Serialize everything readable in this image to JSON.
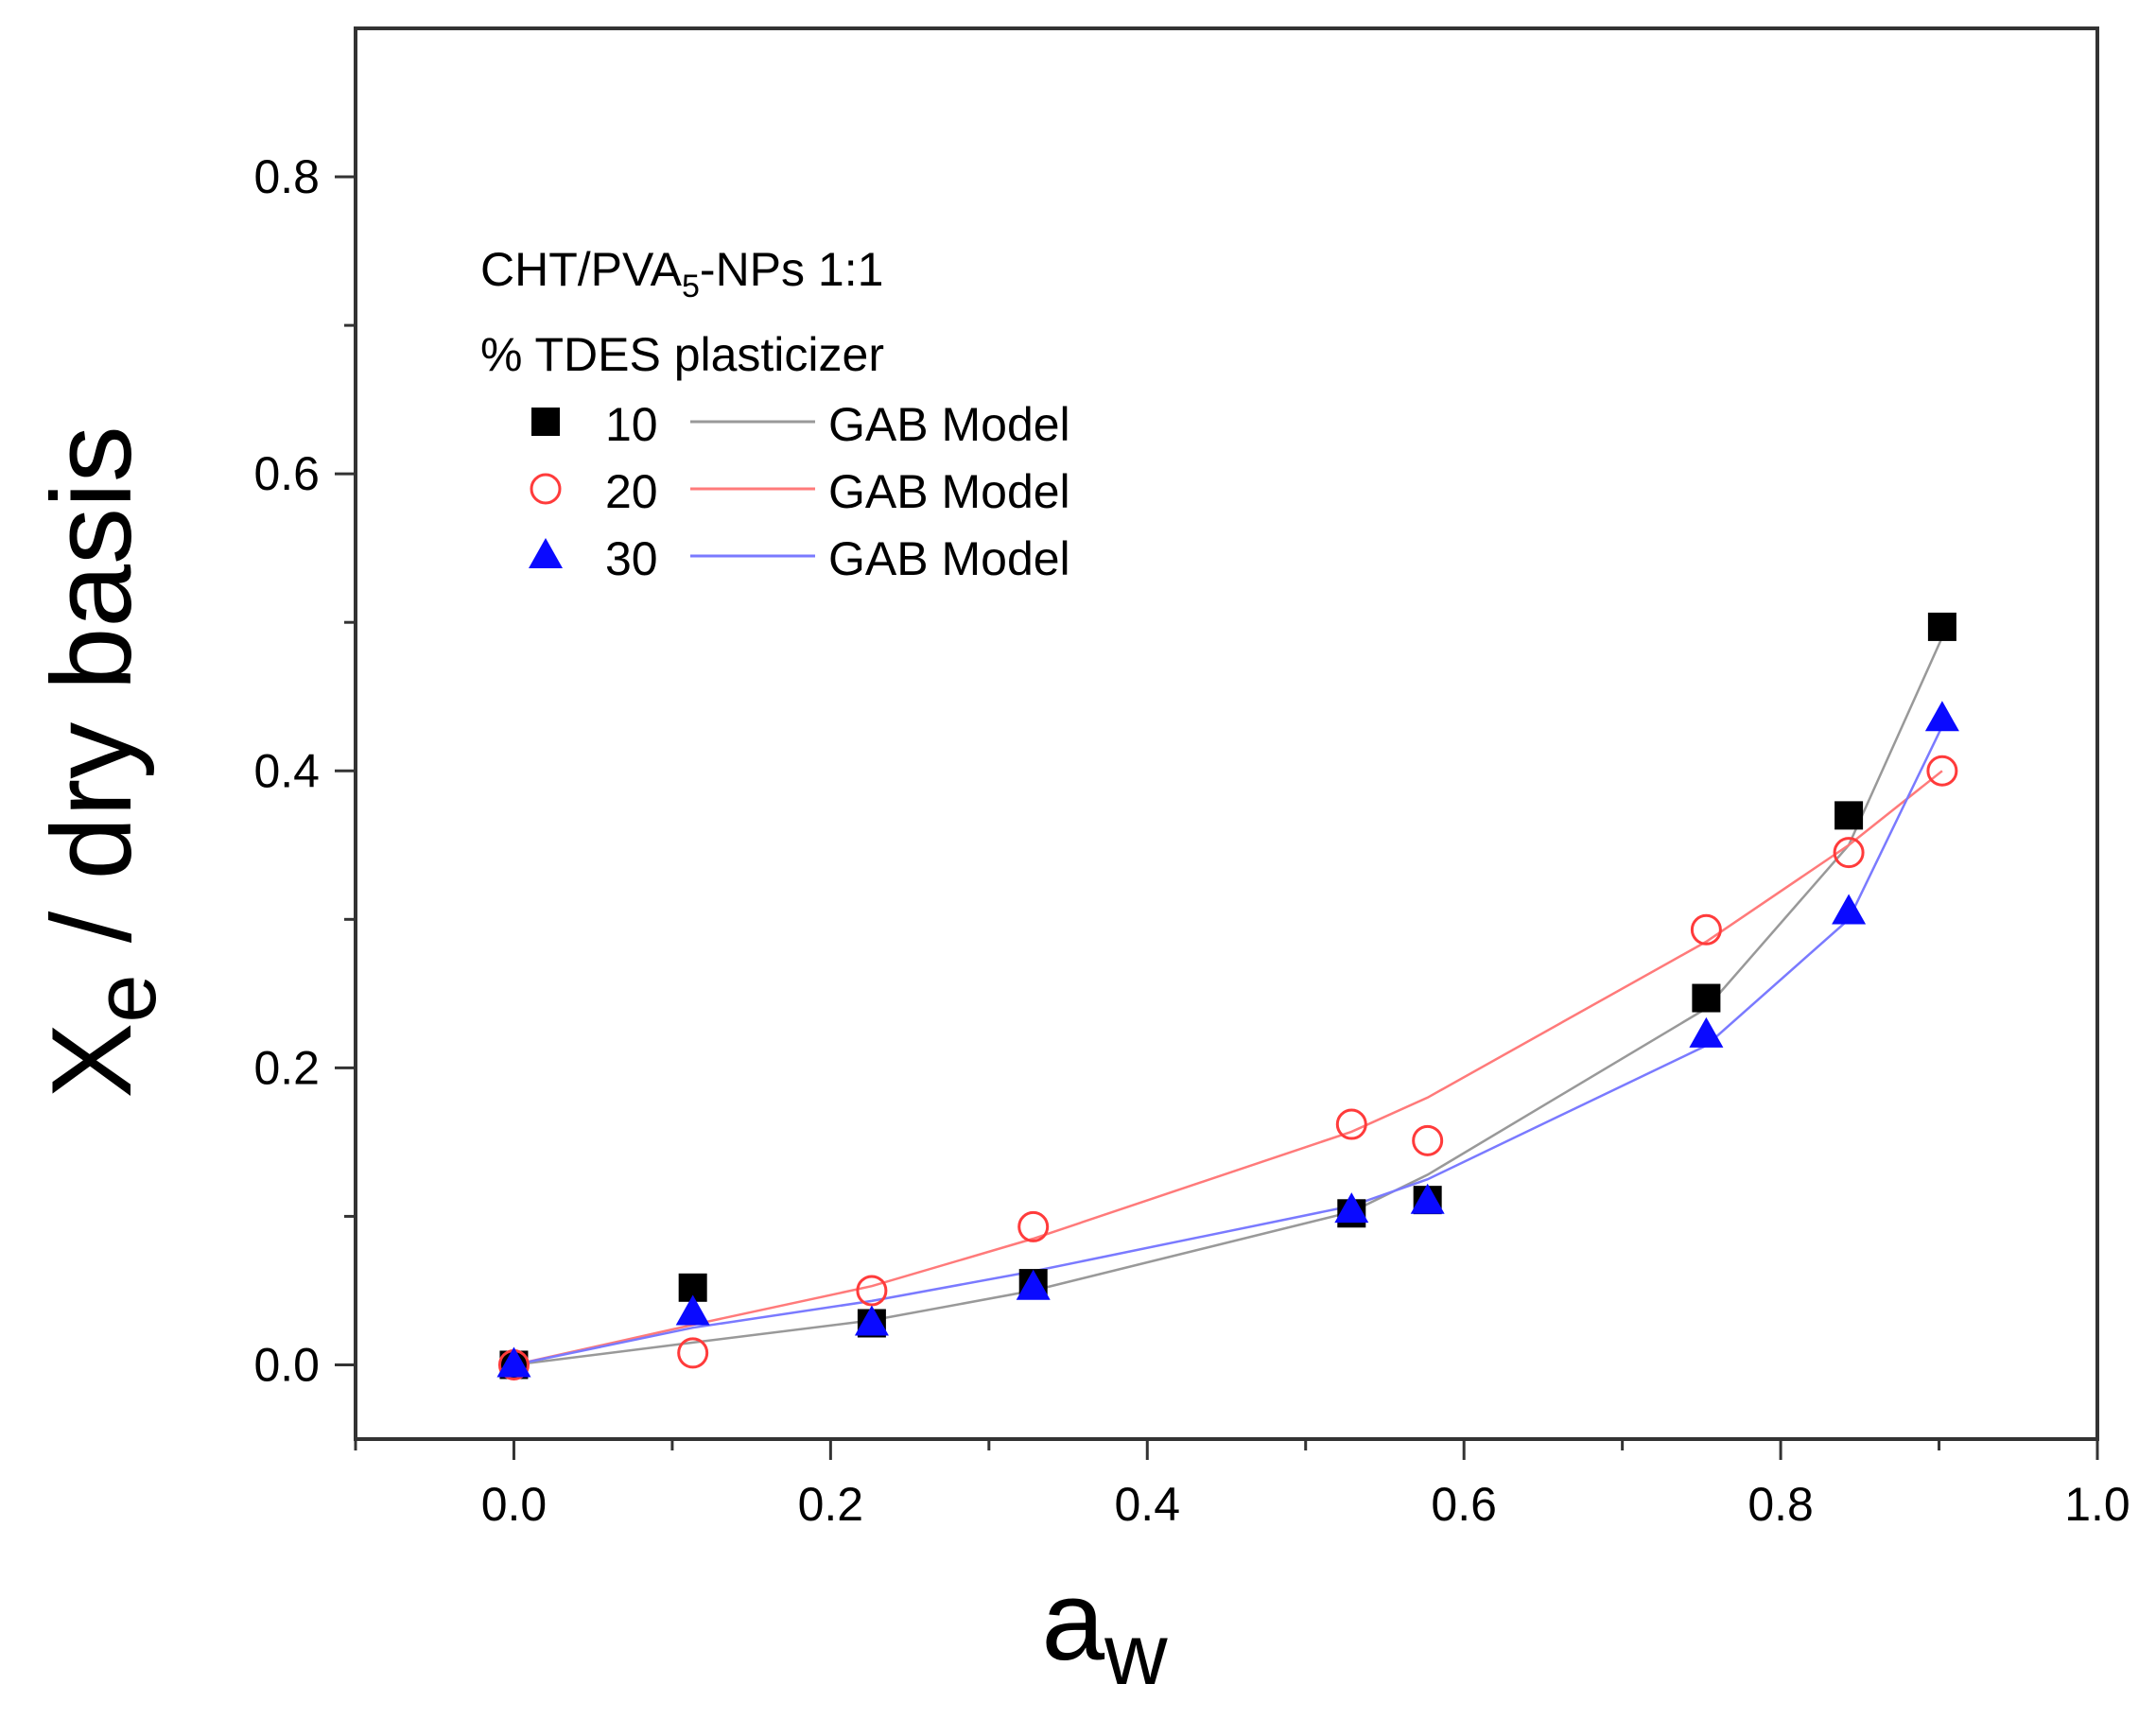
{
  "chart_data": {
    "type": "scatter",
    "xlabel": "a",
    "xlabel_sub": "w",
    "ylabel_main": "X",
    "ylabel_sub": "e",
    "ylabel_rest": " / dry basis",
    "xlim": [
      -0.1,
      1.0
    ],
    "ylim": [
      -0.05,
      0.9
    ],
    "xticks": [
      "0.0",
      "0.2",
      "0.4",
      "0.6",
      "0.8",
      "1.0"
    ],
    "xtick_values": [
      0.0,
      0.2,
      0.4,
      0.6,
      0.8,
      1.0
    ],
    "yticks": [
      "0.0",
      "0.2",
      "0.4",
      "0.6",
      "0.8"
    ],
    "ytick_values": [
      0.0,
      0.2,
      0.4,
      0.6,
      0.8
    ],
    "grid": false,
    "legend": {
      "position": "top-left",
      "title_line1_pre": "CHT/PVA",
      "title_line1_sub": "5",
      "title_line1_post": "-NPs 1:1",
      "title_line2": "% TDES plasticizer",
      "model_label": "GAB Model"
    },
    "series": [
      {
        "name": "10",
        "marker": "square",
        "color": "#000000",
        "line_color": "#999999",
        "x": [
          0.0,
          0.113,
          0.226,
          0.328,
          0.529,
          0.577,
          0.753,
          0.843,
          0.902
        ],
        "y": [
          0.0,
          0.052,
          0.028,
          0.055,
          0.102,
          0.111,
          0.247,
          0.37,
          0.497
        ],
        "model_x": [
          0.0,
          0.113,
          0.226,
          0.328,
          0.529,
          0.577,
          0.753,
          0.843,
          0.902
        ],
        "model_y": [
          0.0,
          0.015,
          0.03,
          0.05,
          0.103,
          0.128,
          0.24,
          0.35,
          0.49
        ]
      },
      {
        "name": "20",
        "marker": "circle-open",
        "color": "#ff3b3b",
        "line_color": "#ff7a7a",
        "x": [
          0.0,
          0.113,
          0.226,
          0.328,
          0.529,
          0.577,
          0.753,
          0.843,
          0.902
        ],
        "y": [
          0.0,
          0.008,
          0.05,
          0.093,
          0.162,
          0.151,
          0.293,
          0.345,
          0.4
        ],
        "model_x": [
          0.0,
          0.113,
          0.226,
          0.328,
          0.529,
          0.577,
          0.753,
          0.843,
          0.902
        ],
        "model_y": [
          0.0,
          0.027,
          0.053,
          0.085,
          0.157,
          0.18,
          0.285,
          0.35,
          0.4
        ]
      },
      {
        "name": "30",
        "marker": "triangle",
        "color": "#0a0aff",
        "line_color": "#7a7aff",
        "x": [
          0.0,
          0.113,
          0.226,
          0.328,
          0.529,
          0.577,
          0.753,
          0.843,
          0.902
        ],
        "y": [
          0.0,
          0.035,
          0.028,
          0.052,
          0.104,
          0.11,
          0.222,
          0.305,
          0.435
        ],
        "model_x": [
          0.0,
          0.113,
          0.226,
          0.328,
          0.529,
          0.577,
          0.753,
          0.843,
          0.902
        ],
        "model_y": [
          0.0,
          0.025,
          0.043,
          0.063,
          0.107,
          0.125,
          0.215,
          0.3,
          0.43
        ]
      }
    ]
  }
}
